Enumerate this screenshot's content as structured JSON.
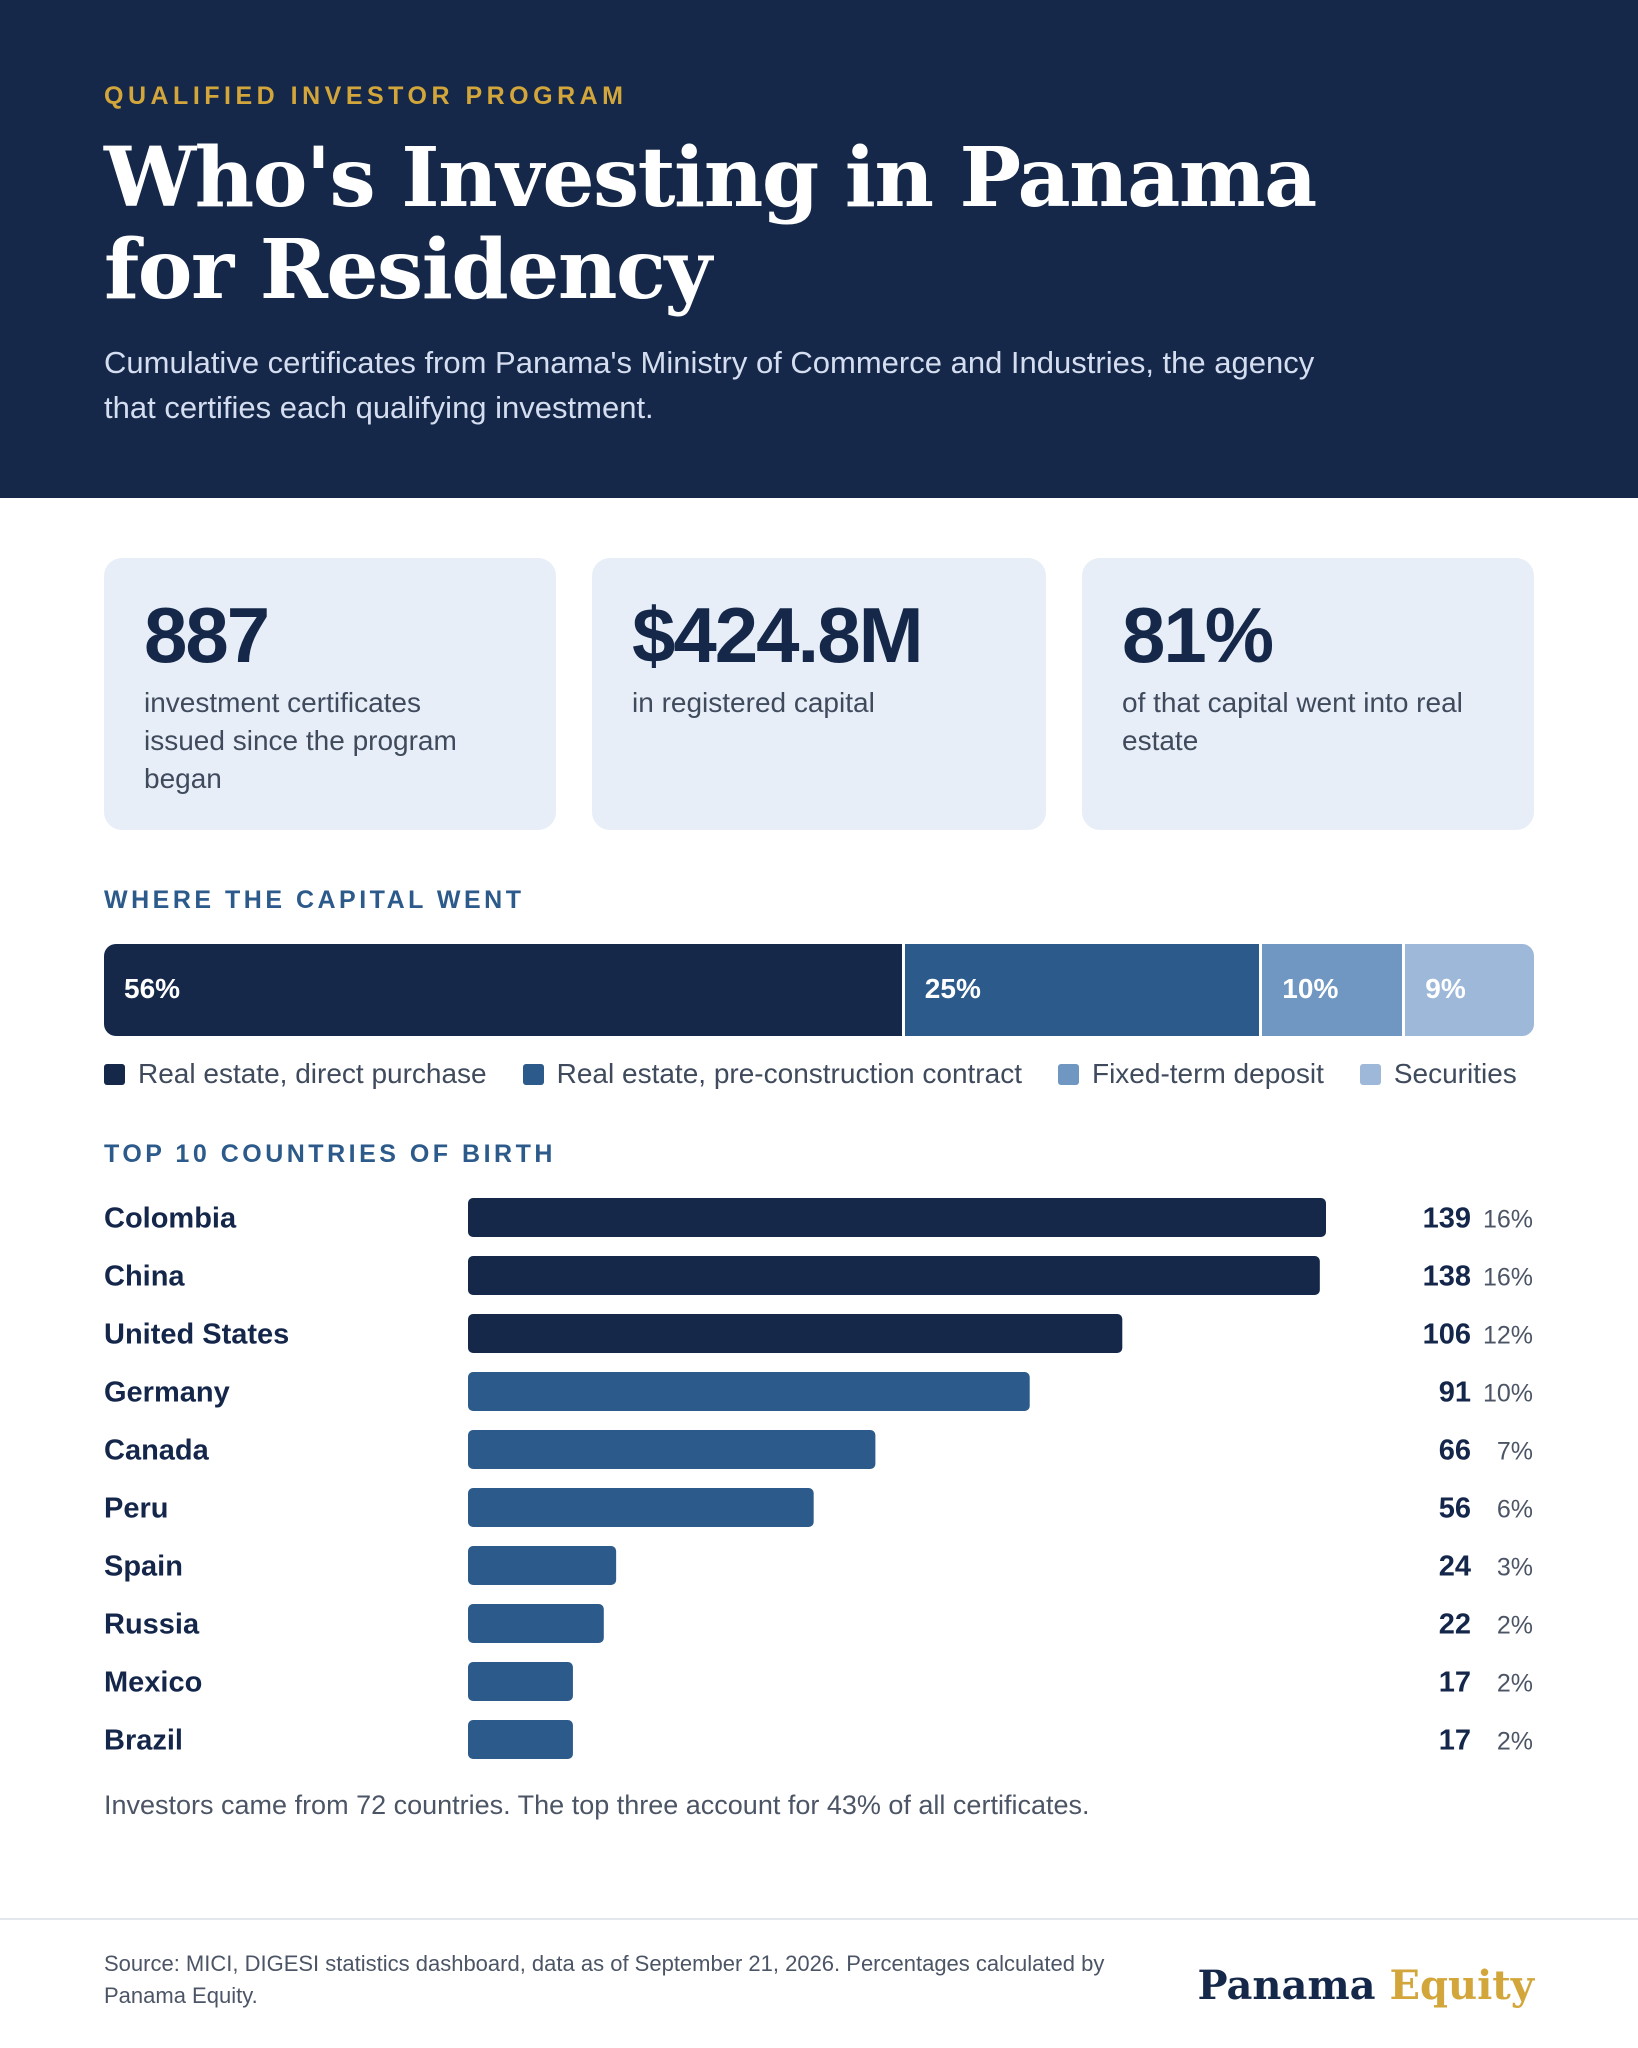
{
  "header": {
    "eyebrow": "QUALIFIED INVESTOR PROGRAM",
    "title": "Who's Investing in Panama for Residency",
    "subtitle": "Cumulative certificates from Panama's Ministry of Commerce and Industries, the agency that certifies each qualifying investment."
  },
  "stats": [
    {
      "value": "887",
      "label": "investment certificates issued since the program began"
    },
    {
      "value": "$424.8M",
      "label": "in registered capital"
    },
    {
      "value": "81%",
      "label": "of that capital went into real estate"
    }
  ],
  "capital_section": {
    "label": "WHERE THE CAPITAL WENT"
  },
  "countries_section": {
    "label": "TOP 10 COUNTRIES OF BIRTH",
    "note": "Investors came from 72 countries. The top three account for 43% of all certificates."
  },
  "colors": {
    "navy": "#152849",
    "blue": "#2c5a8a",
    "steel": "#6f97c2",
    "light": "#9db8d8",
    "gold": "#d2a63a"
  },
  "chart_data": [
    {
      "type": "bar",
      "orientation": "horizontal-stacked",
      "title": "WHERE THE CAPITAL WENT",
      "categories": [
        "Real estate, direct purchase",
        "Real estate, pre-construction contract",
        "Fixed-term deposit",
        "Securities"
      ],
      "values": [
        56,
        25,
        10,
        9
      ],
      "labels": [
        "56%",
        "25%",
        "10%",
        "9%"
      ],
      "colors": [
        "#152849",
        "#2c5a8a",
        "#6f97c2",
        "#9db8d8"
      ],
      "legend": "bottom"
    },
    {
      "type": "bar",
      "orientation": "horizontal",
      "title": "TOP 10 COUNTRIES OF BIRTH",
      "categories": [
        "Colombia",
        "China",
        "United States",
        "Germany",
        "Canada",
        "Peru",
        "Spain",
        "Russia",
        "Mexico",
        "Brazil"
      ],
      "values": [
        139,
        138,
        106,
        91,
        66,
        56,
        24,
        22,
        17,
        17
      ],
      "percents": [
        "16%",
        "16%",
        "12%",
        "10%",
        "7%",
        "6%",
        "3%",
        "2%",
        "2%",
        "2%"
      ],
      "highlight_top": 3,
      "xlim": [
        0,
        139
      ]
    }
  ],
  "footer": {
    "source": "Source: MICI, DIGESI statistics dashboard, data as of September 21, 2026. Percentages calculated by Panama Equity.",
    "brand_primary": "Panama",
    "brand_accent": "Equity"
  }
}
